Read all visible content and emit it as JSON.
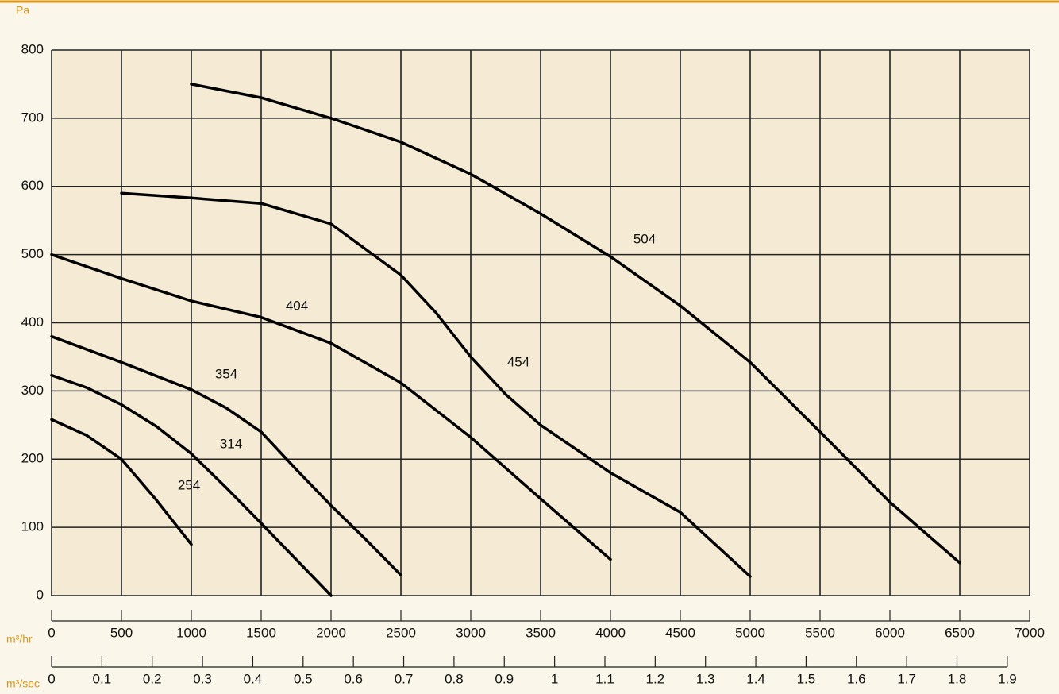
{
  "chart_data": {
    "type": "line",
    "y_label": "Pa",
    "x_label": "m³/hr",
    "x2_label": "m³/sec",
    "xlim": [
      0,
      7000
    ],
    "xticks": [
      0,
      500,
      1000,
      1500,
      2000,
      2500,
      3000,
      3500,
      4000,
      4500,
      5000,
      5500,
      6000,
      6500,
      7000
    ],
    "x2lim": [
      0,
      1.9444
    ],
    "x2ticks": [
      0,
      0.1,
      0.2,
      0.3,
      0.4,
      0.5,
      0.6,
      0.7,
      0.8,
      0.9,
      1.0,
      1.1,
      1.2,
      1.3,
      1.4,
      1.5,
      1.6,
      1.7,
      1.8,
      1.9
    ],
    "ylim": [
      0,
      800
    ],
    "yticks": [
      0,
      100,
      200,
      300,
      400,
      500,
      600,
      700,
      800
    ],
    "grid": true,
    "series": [
      {
        "name": "254",
        "color": "#000000",
        "x": [
          0,
          250,
          500,
          750,
          1000
        ],
        "values": [
          258,
          235,
          200,
          140,
          75
        ]
      },
      {
        "name": "314",
        "color": "#000000",
        "x": [
          0,
          250,
          500,
          750,
          1000,
          1250,
          1500,
          1750,
          2000
        ],
        "values": [
          323,
          305,
          280,
          248,
          208,
          158,
          106,
          53,
          0
        ]
      },
      {
        "name": "354",
        "color": "#000000",
        "x": [
          0,
          500,
          1000,
          1250,
          1500,
          1750,
          2000,
          2250,
          2500
        ],
        "values": [
          380,
          342,
          302,
          275,
          240,
          185,
          132,
          82,
          30
        ]
      },
      {
        "name": "404",
        "color": "#000000",
        "x": [
          0,
          500,
          1000,
          1500,
          2000,
          2500,
          3000,
          3500,
          4000
        ],
        "values": [
          500,
          465,
          432,
          408,
          370,
          312,
          232,
          142,
          53
        ]
      },
      {
        "name": "454",
        "color": "#000000",
        "x": [
          500,
          1000,
          1500,
          2000,
          2500,
          2750,
          3000,
          3250,
          3500,
          4000,
          4500,
          4750,
          5000
        ],
        "values": [
          590,
          583,
          575,
          545,
          470,
          415,
          350,
          295,
          250,
          180,
          122,
          75,
          28
        ]
      },
      {
        "name": "504",
        "color": "#000000",
        "x": [
          1000,
          1500,
          2000,
          2500,
          3000,
          3500,
          4000,
          4500,
          5000,
          5500,
          6000,
          6500
        ],
        "values": [
          750,
          730,
          700,
          665,
          618,
          560,
          497,
          425,
          342,
          240,
          137,
          48
        ]
      }
    ]
  }
}
